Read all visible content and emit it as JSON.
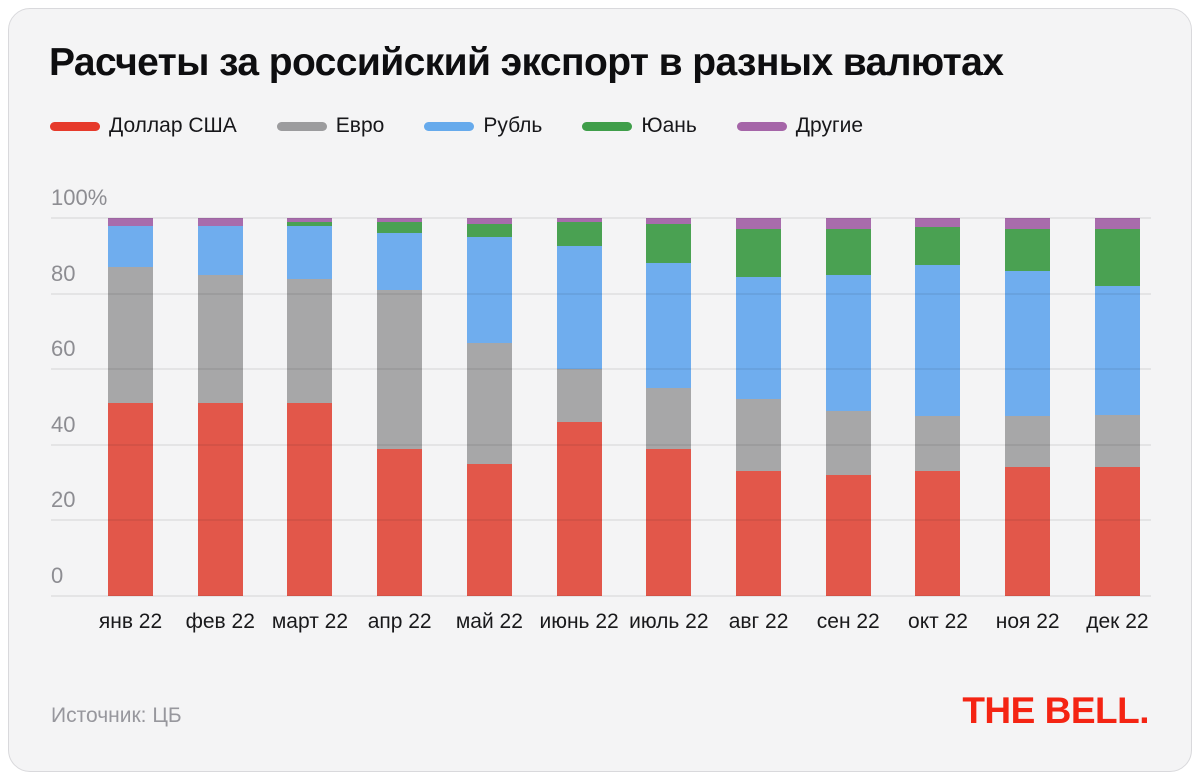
{
  "title": "Расчеты за российский экспорт в разных валютах",
  "legend": [
    {
      "key": "dollar-usa",
      "label": "Доллар США",
      "color": "#e63a2b"
    },
    {
      "key": "euro",
      "label": "Евро",
      "color": "#9c9c9e"
    },
    {
      "key": "ruble",
      "label": "Рубль",
      "color": "#66aaec"
    },
    {
      "key": "yuan",
      "label": "Юань",
      "color": "#3f9e4a"
    },
    {
      "key": "other",
      "label": "Другие",
      "color": "#a565a8"
    }
  ],
  "footer": {
    "source": "Источник: ЦБ",
    "logo": "THE BELL."
  },
  "chart_data": {
    "type": "bar",
    "subtype": "stacked-100-percent",
    "title": "Расчеты за российский экспорт в разных валютах",
    "unit": "%",
    "categories": [
      "янв 22",
      "фев 22",
      "март 22",
      "апр 22",
      "май 22",
      "июнь 22",
      "июль 22",
      "авг 22",
      "сен 22",
      "окт 22",
      "ноя 22",
      "дек 22"
    ],
    "series": [
      {
        "key": "dollar-usa",
        "name": "Доллар США",
        "color": "#e2574a",
        "values": [
          51,
          51,
          51,
          39,
          35,
          46,
          39,
          33,
          32,
          33,
          34,
          34
        ]
      },
      {
        "key": "euro",
        "name": "Евро",
        "color": "#a7a7a8",
        "values": [
          36,
          34,
          33,
          42,
          32,
          14,
          16,
          19,
          17,
          14.5,
          13.5,
          14
        ]
      },
      {
        "key": "ruble",
        "name": "Рубль",
        "color": "#6fadee",
        "values": [
          11,
          13,
          14,
          15,
          28,
          32.5,
          33,
          32.5,
          36,
          40,
          38.5,
          34
        ]
      },
      {
        "key": "yuan",
        "name": "Юань",
        "color": "#4aa152",
        "values": [
          0,
          0,
          1,
          3,
          3.5,
          6.5,
          10.5,
          12.5,
          12,
          10,
          11,
          15
        ]
      },
      {
        "key": "other",
        "name": "Другие",
        "color": "#a86cac",
        "values": [
          2,
          2,
          1,
          1,
          1.5,
          1,
          1.5,
          3,
          3,
          2.5,
          3,
          3
        ]
      }
    ],
    "y_axis": {
      "max": 100,
      "ticks": [
        {
          "value": 0,
          "label": "0"
        },
        {
          "value": 20,
          "label": "20"
        },
        {
          "value": 40,
          "label": "40"
        },
        {
          "value": 60,
          "label": "60"
        },
        {
          "value": 80,
          "label": "80"
        },
        {
          "value": 100,
          "label": "100%"
        }
      ]
    },
    "grid": true,
    "legend_position": "top",
    "source": "ЦБ"
  }
}
